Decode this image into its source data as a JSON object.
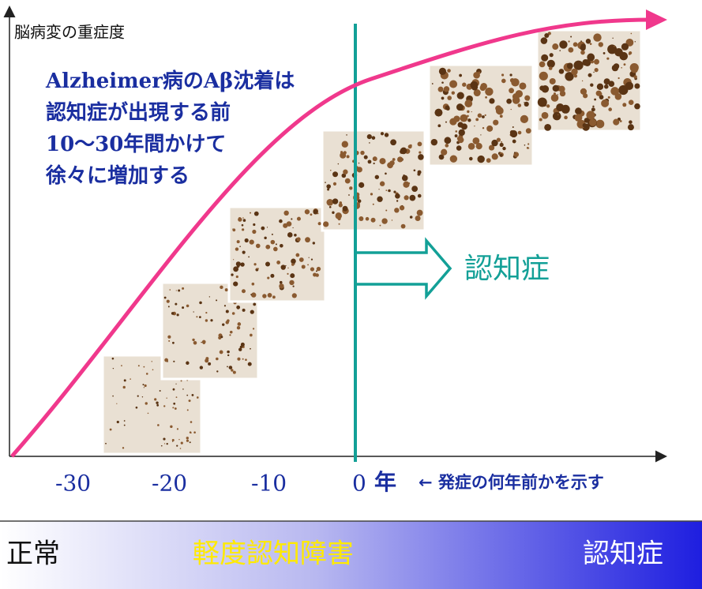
{
  "y_axis_label": "脳病変の重症度",
  "annotation": [
    "Alzheimer病のAβ沈着は",
    "認知症が出現する前",
    "10〜30年間かけて",
    "徐々に増加する"
  ],
  "x_ticks": [
    -30,
    -20,
    -10,
    0
  ],
  "x_unit": "年",
  "x_note": "← 発症の何年前かを示す",
  "onset_label": "認知症",
  "stages": [
    "正常",
    "軽度認知障害",
    "認知症"
  ]
}
